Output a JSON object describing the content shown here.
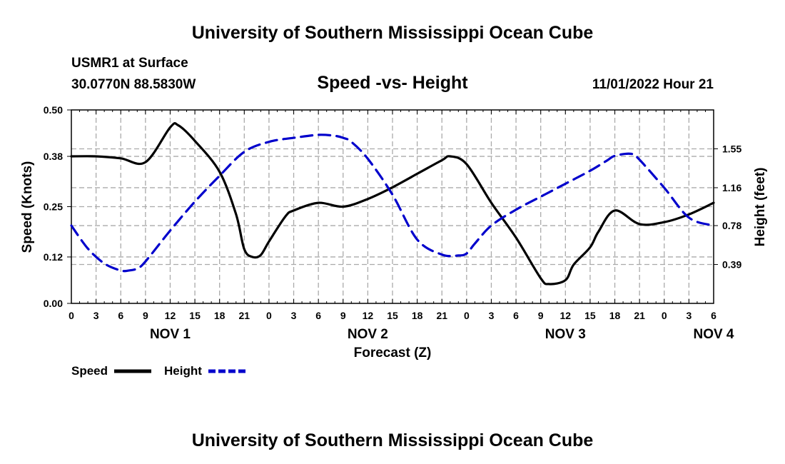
{
  "header": {
    "title": "University of Southern Mississippi Ocean Cube",
    "station": "USMR1 at Surface",
    "coords": "30.0770N  88.5830W",
    "chart_title": "Speed -vs- Height",
    "datetime": "11/01/2022 Hour 21",
    "footer_title": "University of Southern Mississippi Ocean Cube"
  },
  "colors": {
    "speed": "#000000",
    "height": "#0000cc",
    "grid": "#aaaaaa"
  },
  "chart_data": {
    "type": "line",
    "title": "Speed -vs- Height",
    "xlabel": "Forecast (Z)",
    "ylabel": "Speed (Knots)",
    "y2label": "Height (feet)",
    "x_range_hours": [
      0,
      78
    ],
    "ylim": [
      0,
      0.5
    ],
    "y2lim": [
      0,
      1.94
    ],
    "y_ticks": [
      0.0,
      0.12,
      0.25,
      0.38,
      0.5
    ],
    "y_tick_labels": [
      "0.00",
      "0.12",
      "0.25",
      "0.38",
      "0.50"
    ],
    "y2_ticks": [
      0.39,
      0.78,
      1.16,
      1.55
    ],
    "y2_tick_labels": [
      "0.39",
      "0.78",
      "1.16",
      "1.55"
    ],
    "x_ticks": [
      0,
      3,
      6,
      9,
      12,
      15,
      18,
      21,
      24,
      27,
      30,
      33,
      36,
      39,
      42,
      45,
      48,
      51,
      54,
      57,
      60,
      63,
      66,
      69,
      72,
      75,
      78
    ],
    "x_tick_labels": [
      "0",
      "3",
      "6",
      "9",
      "12",
      "15",
      "18",
      "21",
      "0",
      "3",
      "6",
      "9",
      "12",
      "15",
      "18",
      "21",
      "0",
      "3",
      "6",
      "9",
      "12",
      "15",
      "18",
      "21",
      "0",
      "3",
      "6"
    ],
    "day_labels": [
      {
        "label": "NOV 1",
        "hour": 12
      },
      {
        "label": "NOV 2",
        "hour": 36
      },
      {
        "label": "NOV 3",
        "hour": 60
      },
      {
        "label": "NOV 4",
        "hour": 78
      }
    ],
    "series": [
      {
        "name": "Speed",
        "axis": "left",
        "style": "solid",
        "x": [
          0,
          3,
          6,
          9,
          12,
          13,
          15,
          18,
          20,
          21,
          22,
          23,
          24,
          26,
          27,
          30,
          33,
          36,
          39,
          42,
          45,
          46,
          48,
          51,
          54,
          57,
          58,
          60,
          61,
          63,
          64,
          66,
          69,
          72,
          75,
          78
        ],
        "values": [
          0.38,
          0.38,
          0.375,
          0.365,
          0.455,
          0.46,
          0.42,
          0.34,
          0.23,
          0.14,
          0.12,
          0.125,
          0.16,
          0.225,
          0.24,
          0.26,
          0.25,
          0.27,
          0.3,
          0.335,
          0.37,
          0.38,
          0.36,
          0.26,
          0.17,
          0.065,
          0.05,
          0.06,
          0.1,
          0.145,
          0.185,
          0.24,
          0.205,
          0.21,
          0.23,
          0.26
        ]
      },
      {
        "name": "Height",
        "axis": "right",
        "style": "dashed",
        "x": [
          0,
          2,
          4,
          6,
          7,
          8,
          9,
          12,
          15,
          18,
          21,
          24,
          27,
          30,
          32,
          33,
          34,
          36,
          39,
          42,
          45,
          47,
          48,
          49,
          51,
          54,
          57,
          60,
          63,
          65,
          66,
          68,
          69,
          72,
          75,
          78
        ],
        "values": [
          0.78,
          0.55,
          0.4,
          0.33,
          0.33,
          0.35,
          0.42,
          0.73,
          1.02,
          1.28,
          1.52,
          1.62,
          1.66,
          1.69,
          1.68,
          1.66,
          1.62,
          1.45,
          1.09,
          0.64,
          0.49,
          0.48,
          0.5,
          0.6,
          0.78,
          0.94,
          1.07,
          1.2,
          1.33,
          1.43,
          1.48,
          1.5,
          1.44,
          1.16,
          0.86,
          0.78
        ]
      }
    ],
    "legend": [
      {
        "label": "Speed",
        "style": "solid"
      },
      {
        "label": "Height",
        "style": "dashed"
      }
    ]
  }
}
